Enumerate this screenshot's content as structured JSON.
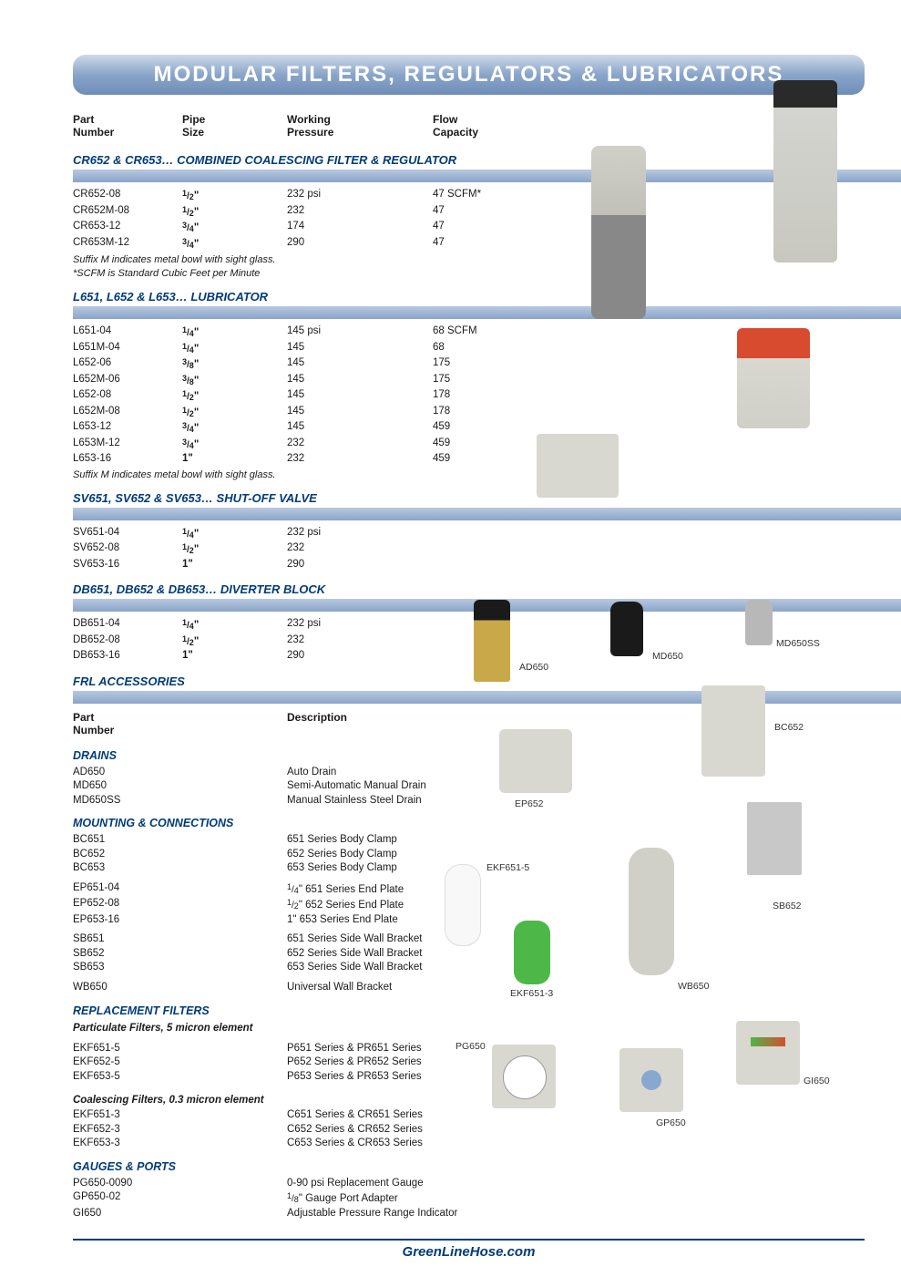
{
  "title": "MODULAR FILTERS, REGULATORS & LUBRICATORS",
  "colors": {
    "header_grad_top": "#cdd9e8",
    "header_grad_bot": "#6e8db8",
    "section_blue": "#003b7a",
    "stripe_top": "#b8c8e0",
    "stripe_bot": "#8aa5c9"
  },
  "headers": {
    "part1": "Part",
    "part2": "Number",
    "pipe1": "Pipe",
    "pipe2": "Size",
    "press1": "Working",
    "press2": "Pressure",
    "flow1": "Flow",
    "flow2": "Capacity"
  },
  "sections": [
    {
      "title": "CR652 & CR653… COMBINED COALESCING FILTER & REGULATOR",
      "rows": [
        {
          "part": "CR652-08",
          "pipe": "1/2\"",
          "press": "232 psi",
          "flow": "47 SCFM*"
        },
        {
          "part": "CR652M-08",
          "pipe": "1/2\"",
          "press": "232",
          "flow": "47"
        },
        {
          "part": "CR653-12",
          "pipe": "3/4\"",
          "press": "174",
          "flow": "47"
        },
        {
          "part": "CR653M-12",
          "pipe": "3/4\"",
          "press": "290",
          "flow": "47"
        }
      ],
      "notes": [
        "Suffix M indicates metal bowl with sight glass.",
        "*SCFM is Standard Cubic Feet per Minute"
      ]
    },
    {
      "title": "L651, L652 & L653… LUBRICATOR",
      "rows": [
        {
          "part": "L651-04",
          "pipe": "1/4\"",
          "press": "145 psi",
          "flow": "68 SCFM"
        },
        {
          "part": "L651M-04",
          "pipe": "1/4\"",
          "press": "145",
          "flow": "68"
        },
        {
          "part": "L652-06",
          "pipe": "3/8\"",
          "press": "145",
          "flow": "175"
        },
        {
          "part": "L652M-06",
          "pipe": "3/8\"",
          "press": "145",
          "flow": "175"
        },
        {
          "part": "L652-08",
          "pipe": "1/2\"",
          "press": "145",
          "flow": "178"
        },
        {
          "part": "L652M-08",
          "pipe": "1/2\"",
          "press": "145",
          "flow": "178"
        },
        {
          "part": "L653-12",
          "pipe": "3/4\"",
          "press": "145",
          "flow": "459"
        },
        {
          "part": "L653M-12",
          "pipe": "3/4\"",
          "press": "232",
          "flow": "459"
        },
        {
          "part": "L653-16",
          "pipe": "1\"",
          "press": "232",
          "flow": "459"
        }
      ],
      "notes": [
        "Suffix M indicates metal bowl with sight glass."
      ]
    },
    {
      "title": "SV651, SV652 & SV653… SHUT-OFF VALVE",
      "rows": [
        {
          "part": "SV651-04",
          "pipe": "1/4\"",
          "press": "232 psi",
          "flow": ""
        },
        {
          "part": "SV652-08",
          "pipe": "1/2\"",
          "press": "232",
          "flow": ""
        },
        {
          "part": "SV653-16",
          "pipe": "1\"",
          "press": "290",
          "flow": ""
        }
      ],
      "notes": []
    },
    {
      "title": "DB651, DB652 & DB653… DIVERTER BLOCK",
      "rows": [
        {
          "part": "DB651-04",
          "pipe": "1/4\"",
          "press": "232 psi",
          "flow": ""
        },
        {
          "part": "DB652-08",
          "pipe": "1/2\"",
          "press": "232",
          "flow": ""
        },
        {
          "part": "DB653-16",
          "pipe": "1\"",
          "press": "290",
          "flow": ""
        }
      ],
      "notes": []
    }
  ],
  "accessories_title": "FRL ACCESSORIES",
  "acc_headers": {
    "part1": "Part",
    "part2": "Number",
    "desc": "Description"
  },
  "acc_sections": [
    {
      "title": "DRAINS",
      "rows": [
        {
          "part": "AD650",
          "desc": "Auto Drain"
        },
        {
          "part": "MD650",
          "desc": "Semi-Automatic Manual Drain"
        },
        {
          "part": "MD650SS",
          "desc": "Manual Stainless Steel Drain"
        }
      ]
    },
    {
      "title": "MOUNTING & CONNECTIONS",
      "groups": [
        [
          {
            "part": "BC651",
            "desc": "651 Series Body Clamp"
          },
          {
            "part": "BC652",
            "desc": "652 Series Body Clamp"
          },
          {
            "part": "BC653",
            "desc": "653 Series Body Clamp"
          }
        ],
        [
          {
            "part": "EP651-04",
            "desc": "1/4\" 651 Series End Plate"
          },
          {
            "part": "EP652-08",
            "desc": "1/2\" 652 Series End Plate"
          },
          {
            "part": "EP653-16",
            "desc": "1\" 653 Series End Plate"
          }
        ],
        [
          {
            "part": "SB651",
            "desc": "651 Series Side Wall Bracket"
          },
          {
            "part": "SB652",
            "desc": "652 Series Side Wall Bracket"
          },
          {
            "part": "SB653",
            "desc": "653 Series Side Wall Bracket"
          }
        ],
        [
          {
            "part": "WB650",
            "desc": "Universal Wall Bracket"
          }
        ]
      ]
    },
    {
      "title": "REPLACEMENT FILTERS",
      "subtitle1": "Particulate Filters, 5 micron element",
      "rows1": [
        {
          "part": "EKF651-5",
          "desc": "P651 Series & PR651 Series"
        },
        {
          "part": "EKF652-5",
          "desc": "P652 Series & PR652 Series"
        },
        {
          "part": "EKF653-5",
          "desc": "P653 Series & PR653 Series"
        }
      ],
      "subtitle2": "Coalescing Filters, 0.3 micron element",
      "rows2": [
        {
          "part": "EKF651-3",
          "desc": "C651 Series & CR651 Series"
        },
        {
          "part": "EKF652-3",
          "desc": "C652 Series & CR652 Series"
        },
        {
          "part": "EKF653-3",
          "desc": "C653 Series & CR653 Series"
        }
      ]
    },
    {
      "title": "GAUGES & PORTS",
      "rows": [
        {
          "part": "PG650-0090",
          "desc": "0-90 psi Replacement Gauge"
        },
        {
          "part": "GP650-02",
          "desc": "1/8\" Gauge Port Adapter"
        },
        {
          "part": "GI650",
          "desc": "Adjustable Pressure Range Indicator"
        }
      ]
    }
  ],
  "img_labels": {
    "ad650": "AD650",
    "md650": "MD650",
    "md650ss": "MD650SS",
    "ep652": "EP652",
    "bc652": "BC652",
    "sb652": "SB652",
    "wb650": "WB650",
    "ekf651_5": "EKF651-5",
    "ekf651_3": "EKF651-3",
    "pg650": "PG650",
    "gp650": "GP650",
    "gi650": "GI650"
  },
  "footer": "GreenLineHose.com"
}
